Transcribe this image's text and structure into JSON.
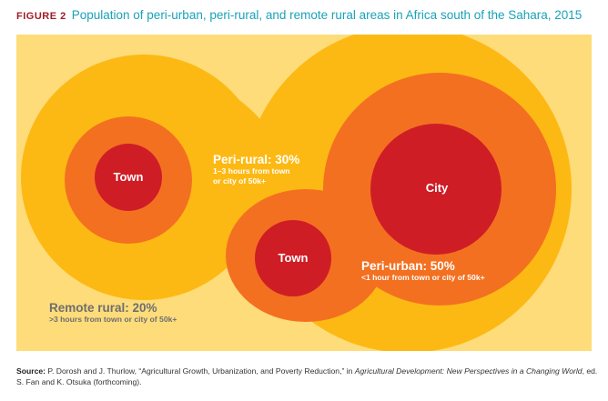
{
  "figure": {
    "number": "FIGURE 2",
    "title": "Population of peri-urban, peri-rural, and remote rural areas in Africa south of the Sahara, 2015"
  },
  "zones": {
    "peri_rural": {
      "title": "Peri-rural: 30%",
      "line1": "1–3 hours from town",
      "line2": "or city of 50k+"
    },
    "peri_urban": {
      "title": "Peri-urban: 50%",
      "subtitle": "<1 hour from town or city of 50k+"
    },
    "remote_rural": {
      "title": "Remote rural: 20%",
      "subtitle": ">3 hours from town or city of 50k+"
    }
  },
  "centers": {
    "town_left": "Town",
    "city": "City",
    "town_right": "Town"
  },
  "source": {
    "label": "Source:",
    "text_before": "P. Dorosh and J. Thurlow, “Agricultural Growth, Urbanization, and Poverty Reduction,” in",
    "book": "Agricultural Development: New Perspectives in a Changing World",
    "text_after": ", ed. S. Fan and K. Otsuka (forthcoming)."
  },
  "colors": {
    "background": "#fedc7a",
    "peri_rural": "#fdb913",
    "peri_urban": "#f37021",
    "center": "#cf1d25",
    "figure_number": "#a01c28",
    "title": "#1aa2b8"
  }
}
